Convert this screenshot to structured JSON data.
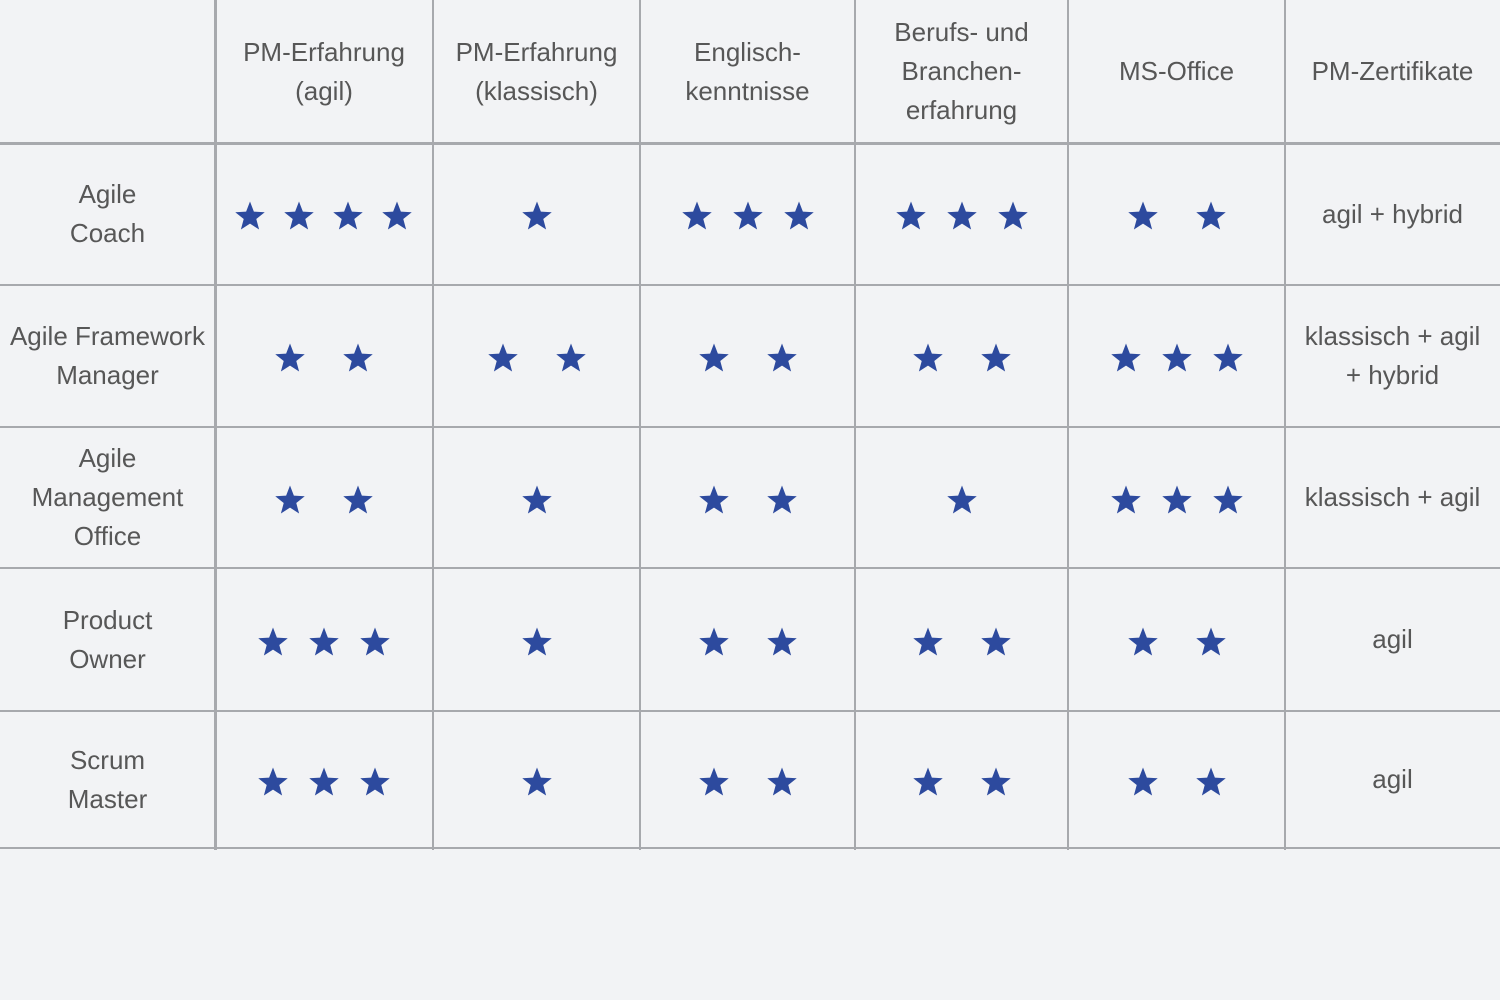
{
  "columns": [
    {
      "id": "row-header",
      "label_lines": []
    },
    {
      "id": "pm-erfahrung-agil",
      "label_lines": [
        "PM-Erfahrung",
        "(agil)"
      ]
    },
    {
      "id": "pm-erfahrung-klassisch",
      "label_lines": [
        "PM-Erfahrung",
        "(klassisch)"
      ]
    },
    {
      "id": "englischkenntnisse",
      "label_lines": [
        "Englisch-",
        "kenntnisse"
      ]
    },
    {
      "id": "berufs-und-branchenerfahrung",
      "label_lines": [
        "Berufs- und",
        "Branchen-",
        "erfahrung"
      ]
    },
    {
      "id": "ms-office",
      "label_lines": [
        "MS-Office"
      ]
    },
    {
      "id": "pm-zertifikate",
      "label_lines": [
        "PM-Zertifikate"
      ]
    }
  ],
  "rows": [
    {
      "id": "agile-coach",
      "label_lines": [
        "Agile",
        "Coach"
      ],
      "ratings": [
        4,
        1,
        3,
        3,
        2
      ],
      "certificate_lines": [
        "agil + hybrid"
      ]
    },
    {
      "id": "agile-framework-manager",
      "label_lines": [
        "Agile Framework",
        "Manager"
      ],
      "ratings": [
        2,
        2,
        2,
        2,
        3
      ],
      "certificate_lines": [
        "klassisch + agil",
        "+ hybrid"
      ]
    },
    {
      "id": "agile-management-office",
      "label_lines": [
        "Agile",
        "Management",
        "Office"
      ],
      "ratings": [
        2,
        1,
        2,
        1,
        3
      ],
      "certificate_lines": [
        "klassisch + agil"
      ]
    },
    {
      "id": "product-owner",
      "label_lines": [
        "Product",
        "Owner"
      ],
      "ratings": [
        3,
        1,
        2,
        2,
        2
      ],
      "certificate_lines": [
        "agil"
      ]
    },
    {
      "id": "scrum-master",
      "label_lines": [
        "Scrum",
        "Master"
      ],
      "ratings": [
        3,
        1,
        2,
        2,
        2
      ],
      "certificate_lines": [
        "agil"
      ]
    }
  ],
  "rating_max": 4,
  "colors": {
    "background": "#f2f3f5",
    "grid_line": "#a7a9ad",
    "text": "#575757",
    "star": "#2d4a9e"
  },
  "icons": {
    "rating": "star-icon"
  }
}
